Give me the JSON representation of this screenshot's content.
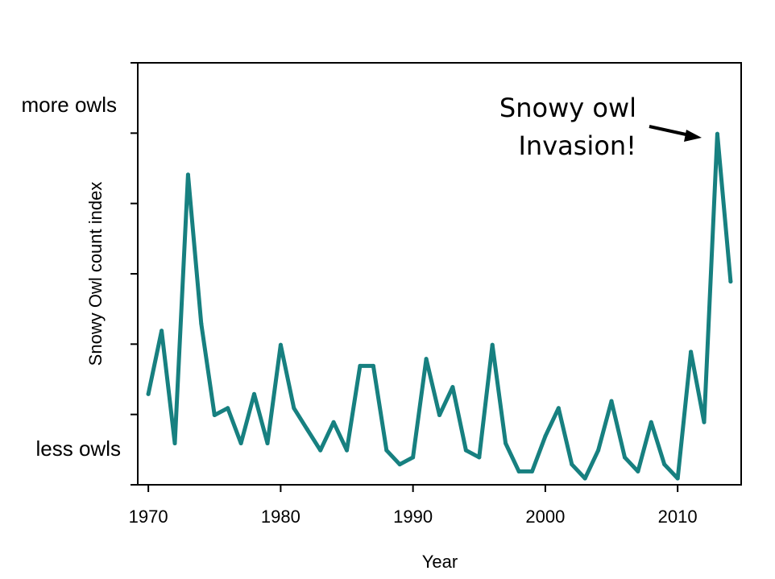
{
  "chart_data": {
    "type": "line",
    "title": "",
    "xlabel": "Year",
    "ylabel": "Snowy Owl count index",
    "xlim": [
      1969.2,
      2014.8
    ],
    "ylim": [
      0,
      6
    ],
    "xticks": [
      1970,
      1980,
      1990,
      2000,
      2010
    ],
    "xtick_labels": [
      "1970",
      "1980",
      "1990",
      "2000",
      "2010"
    ],
    "ytick_count": 7,
    "y_side_labels": {
      "top": "more owls",
      "bottom": "less owls"
    },
    "grid": false,
    "legend": "none",
    "line_color": "#178080",
    "annotation": {
      "lines": [
        "Snowy owl",
        "Invasion!"
      ],
      "points_to": {
        "x": 2013,
        "y": 4.99
      }
    },
    "series": [
      {
        "x": [
          1970,
          1971,
          1972,
          1973,
          1974,
          1975,
          1976,
          1977,
          1978,
          1979,
          1980,
          1981,
          1982,
          1983,
          1984,
          1985,
          1986,
          1987,
          1988,
          1989,
          1990,
          1991,
          1992,
          1993,
          1994,
          1995,
          1996,
          1997,
          1998,
          1999,
          2000,
          2001,
          2002,
          2003,
          2004,
          2005,
          2006,
          2007,
          2008,
          2009,
          2010,
          2011,
          2012,
          2013,
          2014
        ],
        "values": [
          1.29,
          2.19,
          0.59,
          4.41,
          2.29,
          0.99,
          1.09,
          0.59,
          1.29,
          0.59,
          1.99,
          1.09,
          0.79,
          0.49,
          0.89,
          0.49,
          1.69,
          1.69,
          0.49,
          0.29,
          0.39,
          1.79,
          0.99,
          1.39,
          0.49,
          0.39,
          1.99,
          0.59,
          0.19,
          0.19,
          0.69,
          1.09,
          0.29,
          0.09,
          0.49,
          1.19,
          0.39,
          0.19,
          0.89,
          0.29,
          0.09,
          1.89,
          0.89,
          4.99,
          2.89
        ]
      }
    ]
  }
}
